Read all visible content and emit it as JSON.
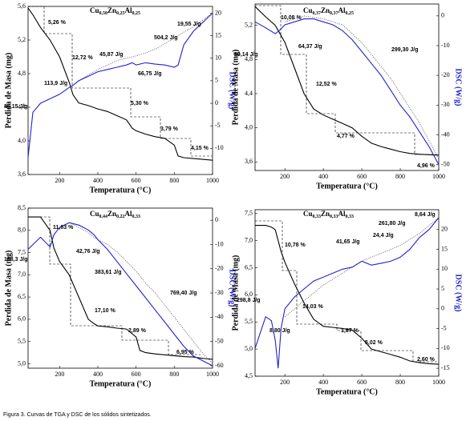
{
  "caption": "Figura 3. Curvas de TGA y DSC de los sólidos sintetizados.",
  "chart_data": [
    {
      "type": "line",
      "title": [
        "Cu",
        "0,50",
        "Zn",
        "0,25",
        "Al",
        "0,25"
      ],
      "xlabel": "Temperatura (°C)",
      "ylabel": "Perdida de Masa (mg)",
      "y2label": "DSC (W/g)",
      "xlim": [
        35,
        1000
      ],
      "xticks": [
        200,
        400,
        600,
        800,
        1000
      ],
      "ylim": [
        3.6,
        5.6
      ],
      "yticks": [
        {
          "value": 3.6,
          "label": "3,6"
        },
        {
          "value": 4.0,
          "label": "4,0"
        },
        {
          "value": 4.4,
          "label": "4,4"
        },
        {
          "value": 4.8,
          "label": "4,8"
        },
        {
          "value": 5.2,
          "label": "5,2"
        },
        {
          "value": 5.6,
          "label": "5,6"
        }
      ],
      "y2lim": [
        -15.8,
        21.5
      ],
      "y2ticks": [
        -10,
        -5,
        0,
        5,
        10,
        15,
        20
      ],
      "x": [
        35,
        60,
        100,
        150,
        200,
        250,
        270,
        300,
        350,
        400,
        450,
        500,
        550,
        580,
        600,
        650,
        700,
        750,
        800,
        820,
        850,
        900,
        950,
        1000
      ],
      "series": [
        {
          "color": "#000000",
          "values": [
            5.58,
            5.5,
            5.35,
            5.2,
            5.0,
            4.7,
            4.55,
            4.45,
            4.42,
            4.38,
            4.35,
            4.3,
            4.25,
            4.15,
            4.12,
            4.08,
            4.05,
            4.03,
            3.95,
            3.82,
            3.8,
            3.79,
            3.78,
            3.77
          ]
        },
        {
          "color": "#2222cc",
          "axis": "y2",
          "values": [
            -12,
            -2,
            0,
            1,
            2,
            3.5,
            4,
            5,
            6,
            7,
            7.5,
            8,
            8.5,
            9,
            8.5,
            9,
            8.7,
            8.5,
            8,
            8.5,
            13,
            16,
            18,
            20
          ]
        },
        {
          "color": "#444444",
          "axis": "y2",
          "style": "dotted",
          "values": [
            null,
            null,
            null,
            null,
            null,
            null,
            null,
            5,
            6.3,
            7.5,
            8.5,
            9.5,
            10,
            10.3,
            10.5,
            11.2,
            12,
            13.2,
            14.5,
            15,
            15.8,
            17,
            18.5,
            20
          ]
        }
      ],
      "annotations": [
        "5,26 %",
        "12,72 %",
        "5,30 %",
        "3,79 %",
        "4,15 %",
        "45,87 J/g",
        "66,75 J/g",
        "504,2 J/g",
        "19,55 J/g",
        "113,9 J/g",
        "85,15 J/g"
      ]
    },
    {
      "type": "line",
      "title": [
        "Cu",
        "0,37",
        "Zn",
        "0,37",
        "Al",
        "0,25"
      ],
      "xlabel": "Temperatura (°C)",
      "ylabel": "Perdida de Masa (mg)",
      "y2label": "DSC (W/g)",
      "xlim": [
        45,
        1000
      ],
      "xticks": [
        200,
        400,
        600,
        800,
        1000
      ],
      "ylim": [
        3.5,
        5.45
      ],
      "yticks": [
        {
          "value": 3.6,
          "label": "3,6"
        },
        {
          "value": 4.0,
          "label": "4,0"
        },
        {
          "value": 4.4,
          "label": "4,4"
        },
        {
          "value": 4.8,
          "label": "4,8"
        },
        {
          "value": 5.2,
          "label": "5,2"
        }
      ],
      "y2lim": [
        -52,
        4
      ],
      "y2ticks": [
        -50,
        -40,
        -30,
        -20,
        -10,
        0
      ],
      "x": [
        45,
        100,
        150,
        170,
        200,
        250,
        300,
        350,
        400,
        450,
        500,
        550,
        600,
        650,
        700,
        750,
        800,
        850,
        900,
        950,
        1000
      ],
      "series": [
        {
          "color": "#000000",
          "values": [
            5.42,
            5.3,
            5.2,
            5.12,
            5.0,
            4.7,
            4.4,
            4.22,
            4.15,
            4.1,
            4.05,
            4.0,
            3.9,
            3.82,
            3.78,
            3.75,
            3.72,
            3.7,
            3.69,
            3.685,
            3.68
          ]
        },
        {
          "color": "#2222cc",
          "axis": "y2",
          "values": [
            -2,
            -4,
            -6,
            -5,
            -3,
            -2,
            -1,
            -1,
            -2,
            -3,
            -5,
            -8,
            -12,
            -16,
            -20,
            -25,
            -30,
            -34,
            -39,
            -44,
            -50
          ]
        },
        {
          "color": "#444444",
          "axis": "y2",
          "style": "dotted",
          "values": [
            null,
            null,
            null,
            null,
            -2,
            -1,
            0,
            -0.5,
            -1,
            -2,
            -3,
            -6,
            -9,
            -13,
            -17,
            -21,
            -26,
            -31,
            -36,
            -42,
            -48
          ]
        }
      ],
      "annotations": [
        "10,08 %",
        "64,37 J/g",
        "89,14 J/g",
        "12,52 %",
        "299,30 J/g",
        "4,77 %",
        "4,96 %"
      ]
    },
    {
      "type": "line",
      "title": [
        "Cu",
        "0,44",
        "Zn",
        "0,22",
        "Al",
        "0,33"
      ],
      "xlabel": "Temperatura (°C)",
      "ylabel": "Perdida de Masa (mg)",
      "y2label": "DSC (W/g)",
      "xlim": [
        35,
        1000
      ],
      "xticks": [
        200,
        400,
        600,
        800,
        1000
      ],
      "ylim": [
        4.9,
        8.5
      ],
      "yticks": [
        {
          "value": 5.0,
          "label": "5,0"
        },
        {
          "value": 5.5,
          "label": "5,5"
        },
        {
          "value": 6.0,
          "label": "6,0"
        },
        {
          "value": 6.5,
          "label": "6,5"
        },
        {
          "value": 7.0,
          "label": "7,0"
        },
        {
          "value": 7.5,
          "label": "7,5"
        },
        {
          "value": 8.0,
          "label": "8,0"
        },
        {
          "value": 8.5,
          "label": "8,5"
        }
      ],
      "y2lim": [
        -61,
        5
      ],
      "y2ticks": [
        -60,
        -50,
        -40,
        -30,
        -20,
        -10,
        0
      ],
      "x": [
        35,
        100,
        150,
        170,
        200,
        250,
        300,
        350,
        380,
        400,
        450,
        500,
        550,
        600,
        620,
        650,
        700,
        750,
        800,
        850,
        900,
        950,
        1000
      ],
      "series": [
        {
          "color": "#000000",
          "values": [
            8.3,
            8.3,
            8.0,
            7.6,
            7.3,
            7.0,
            6.5,
            6.0,
            5.9,
            5.85,
            5.83,
            5.8,
            5.78,
            5.6,
            5.3,
            5.25,
            5.22,
            5.2,
            5.18,
            5.16,
            5.15,
            5.12,
            5.1
          ]
        },
        {
          "color": "#2222cc",
          "axis": "y2",
          "values": [
            -12,
            -7,
            -11,
            -6,
            -3,
            -1,
            -2,
            -4,
            -6,
            -8,
            -12,
            -17,
            -22,
            -27,
            -29,
            -32,
            -37,
            -42,
            -47,
            -52,
            -56,
            -58,
            -60
          ]
        },
        {
          "color": "#444444",
          "axis": "y2",
          "style": "dotted",
          "values": [
            null,
            null,
            null,
            null,
            null,
            -1,
            -3,
            -5,
            -7,
            -8,
            -10,
            -13,
            -17,
            -21,
            -23,
            -26,
            -30,
            -35,
            -40,
            -45,
            -50,
            -55,
            -59
          ]
        }
      ],
      "annotations": [
        "11,63 %",
        "42,76 J/g",
        "168,3 J/g",
        "383,61 J/g",
        "17,10 %",
        "769,40 J/g",
        "2,89 %",
        "6,95 %"
      ]
    },
    {
      "type": "line",
      "title": [
        "Cu",
        "0,33",
        "Zn",
        "0,33",
        "Al",
        "0,33"
      ],
      "xlabel": "Temperatura (°C)",
      "ylabel": "Perdida de Masa (mg)",
      "y2label": "DSC (W/g)",
      "xlim": [
        45,
        1000
      ],
      "xticks": [
        200,
        400,
        600,
        800,
        1000
      ],
      "ylim": [
        4.5,
        7.57
      ],
      "yticks": [
        {
          "value": 4.5,
          "label": "4,5"
        },
        {
          "value": 5.0,
          "label": "5,0"
        },
        {
          "value": 5.5,
          "label": "5,5"
        },
        {
          "value": 6.0,
          "label": "6,0"
        },
        {
          "value": 6.5,
          "label": "6,5"
        },
        {
          "value": 7.0,
          "label": "7,0"
        },
        {
          "value": 7.5,
          "label": "7,5"
        }
      ],
      "y2lim": [
        -17,
        25
      ],
      "y2ticks": [
        -15,
        -10,
        -5,
        0,
        5,
        10,
        15,
        20
      ],
      "x": [
        45,
        100,
        130,
        150,
        165,
        180,
        200,
        250,
        300,
        350,
        400,
        450,
        500,
        550,
        600,
        650,
        700,
        750,
        800,
        850,
        900,
        950,
        1000
      ],
      "series": [
        {
          "color": "#000000",
          "values": [
            7.28,
            7.28,
            7.25,
            7.2,
            7.0,
            6.8,
            6.6,
            6.2,
            5.85,
            5.55,
            5.42,
            5.4,
            5.38,
            5.35,
            5.2,
            5.0,
            4.95,
            4.9,
            4.85,
            4.78,
            4.75,
            4.73,
            4.72
          ]
        },
        {
          "color": "#2222cc",
          "axis": "y2",
          "values": [
            -10,
            -2,
            -3,
            -8,
            -15,
            -5,
            0,
            3,
            5,
            7,
            8,
            9,
            10,
            10.5,
            12,
            11,
            11.5,
            12,
            13,
            15,
            18,
            20,
            23
          ]
        },
        {
          "color": "#444444",
          "axis": "y2",
          "style": "dotted",
          "values": [
            null,
            null,
            null,
            null,
            null,
            null,
            -2,
            0,
            2,
            4,
            6,
            7.5,
            9,
            10.5,
            12,
            13,
            14,
            15,
            16,
            17.5,
            19,
            21,
            23
          ]
        }
      ],
      "annotations": [
        "10,78 %",
        "41,65 J/g",
        "24,4 J/g",
        "261,80 J/g",
        "8,64 J/g",
        "298,8 J/g",
        "8,80 J/g",
        "14,03 %",
        "1,87 %",
        "5,02 %",
        "2,60 %"
      ]
    }
  ]
}
